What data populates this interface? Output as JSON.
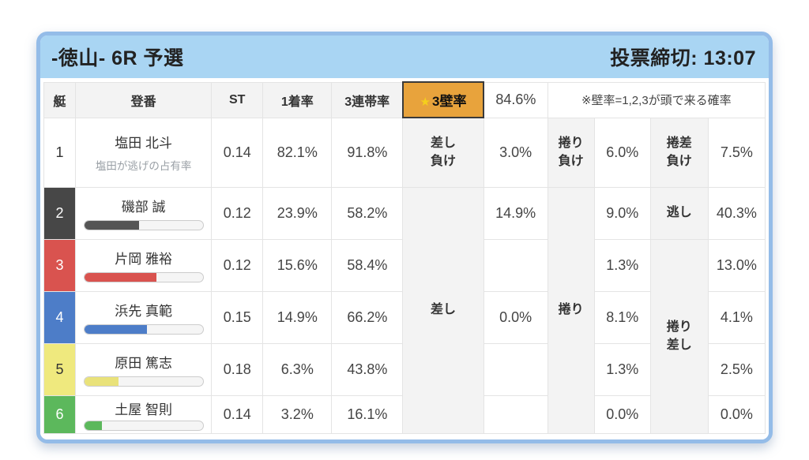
{
  "header": {
    "title": "-徳山- 6R 予選",
    "deadline": "投票締切: 13:07"
  },
  "colors": {
    "card_border": "#94bce8",
    "header_bg": "#a9d5f3",
    "wall_highlight": "#e8a33c",
    "star": "#f5cf1b"
  },
  "table": {
    "columns": {
      "boat": "艇",
      "racer": "登番",
      "st": "ST",
      "win_rate": "1着率",
      "top3_rate": "3連帯率"
    },
    "wall": {
      "star": "★",
      "label": "3壁率",
      "value": "84.6%",
      "note": "※壁率=1,2,3が頭で来る確率"
    },
    "merged_labels": {
      "sashi": "差し",
      "makuri": "捲り",
      "makuri_sashi_1": "捲り",
      "makuri_sashi_2": "差し"
    },
    "row1_labels": {
      "sashi_1": "差し",
      "sashi_2": "負け",
      "makuri_1": "捲り",
      "makuri_2": "負け",
      "makuzashi_1": "捲差",
      "makuzashi_2": "負け"
    },
    "rows": [
      {
        "num": "1",
        "num_bg": "#ffffff",
        "num_fg": "#333333",
        "name": "塩田 北斗",
        "subtitle": "塩田が逃げの占有率",
        "st": "0.14",
        "win_rate": "82.1%",
        "top3_rate": "91.8%",
        "sashi": "3.0%",
        "makuri": "6.0%",
        "makuzashi": "7.5%"
      },
      {
        "num": "2",
        "num_bg": "#474747",
        "num_fg": "#ffffff",
        "name": "磯部 誠",
        "bar_pct": 46,
        "bar_color": "#555555",
        "st": "0.12",
        "win_rate": "23.9%",
        "top3_rate": "58.2%",
        "sashi": "14.9%",
        "makuri": "9.0%",
        "nigashi_label": "逃し",
        "makuzashi": "40.3%"
      },
      {
        "num": "3",
        "num_bg": "#d9534f",
        "num_fg": "#ffffff",
        "name": "片岡 雅裕",
        "bar_pct": 61,
        "bar_color": "#d9534f",
        "st": "0.12",
        "win_rate": "15.6%",
        "top3_rate": "58.4%",
        "sashi": "",
        "makuri": "1.3%",
        "makuzashi": "13.0%"
      },
      {
        "num": "4",
        "num_bg": "#4d7dc8",
        "num_fg": "#ffffff",
        "name": "浜先 真範",
        "bar_pct": 53,
        "bar_color": "#4d7dc8",
        "st": "0.15",
        "win_rate": "14.9%",
        "top3_rate": "66.2%",
        "sashi": "0.0%",
        "makuri": "8.1%",
        "makuzashi": "4.1%"
      },
      {
        "num": "5",
        "num_bg": "#efe97e",
        "num_fg": "#333333",
        "name": "原田 篤志",
        "bar_pct": 29,
        "bar_color": "#e9e27a",
        "st": "0.18",
        "win_rate": "6.3%",
        "top3_rate": "43.8%",
        "sashi": "",
        "makuri": "1.3%",
        "makuzashi": "2.5%"
      },
      {
        "num": "6",
        "num_bg": "#5cb85c",
        "num_fg": "#ffffff",
        "name": "土屋 智則",
        "bar_pct": 15,
        "bar_color": "#5cb85c",
        "st": "0.14",
        "win_rate": "3.2%",
        "top3_rate": "16.1%",
        "sashi": "",
        "makuri": "0.0%",
        "makuzashi": "0.0%"
      }
    ]
  }
}
